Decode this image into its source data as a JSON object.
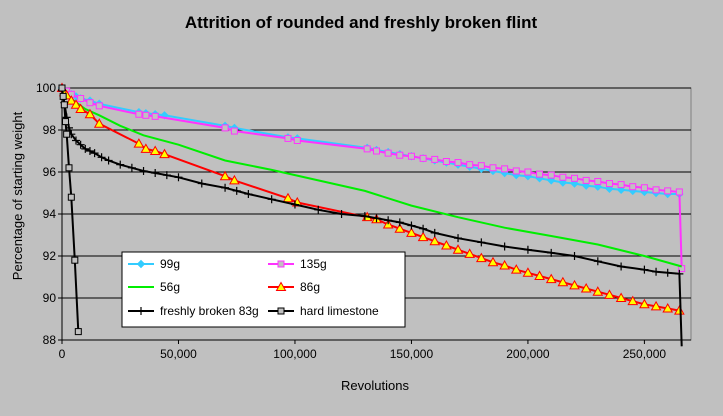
{
  "chart_data": {
    "type": "line",
    "title": "Attrition of rounded and freshly broken flint",
    "xlabel": "Revolutions",
    "ylabel": "Percentage of starting  weight",
    "xlim": [
      0,
      270000
    ],
    "ylim": [
      88,
      100
    ],
    "x_ticks": [
      0,
      50000,
      100000,
      150000,
      200000,
      250000
    ],
    "x_tick_labels": [
      "0",
      "50,000",
      "100,000",
      "150,000",
      "200,000",
      "250,000"
    ],
    "y_ticks": [
      88,
      90,
      92,
      94,
      96,
      98,
      100
    ],
    "y_tick_labels": [
      "88",
      "90",
      "92",
      "94",
      "96",
      "98",
      "100"
    ],
    "grid": "horizontal",
    "legend_position": "bottom-center",
    "series": [
      {
        "name": "99g",
        "color": "#33ccff",
        "marker": "diamond",
        "marker_fill": "#33ccff",
        "x": [
          0,
          1000,
          2000,
          4000,
          6000,
          8000,
          12000,
          16000,
          33000,
          36000,
          40000,
          44000,
          70000,
          74000,
          97000,
          101000,
          131000,
          135000,
          140000,
          145000,
          150000,
          155000,
          160000,
          165000,
          170000,
          175000,
          180000,
          185000,
          190000,
          195000,
          200000,
          205000,
          210000,
          215000,
          220000,
          225000,
          230000,
          235000,
          240000,
          245000,
          250000,
          255000,
          260000,
          265000
        ],
        "y": [
          100,
          99.9,
          99.8,
          99.7,
          99.6,
          99.5,
          99.4,
          99.25,
          98.85,
          98.8,
          98.75,
          98.7,
          98.2,
          98.1,
          97.65,
          97.6,
          97.15,
          97.05,
          96.95,
          96.85,
          96.75,
          96.65,
          96.55,
          96.45,
          96.35,
          96.25,
          96.15,
          96.05,
          95.95,
          95.85,
          95.8,
          95.7,
          95.6,
          95.5,
          95.45,
          95.35,
          95.3,
          95.2,
          95.15,
          95.1,
          95.05,
          95.0,
          94.95,
          94.95
        ]
      },
      {
        "name": "135g",
        "color": "#ff33ff",
        "marker": "square",
        "marker_fill": "#c0c0c0",
        "x": [
          0,
          2000,
          4000,
          8000,
          12000,
          16000,
          33000,
          36000,
          40000,
          70000,
          74000,
          97000,
          101000,
          131000,
          135000,
          140000,
          145000,
          150000,
          155000,
          160000,
          165000,
          170000,
          175000,
          180000,
          185000,
          190000,
          195000,
          200000,
          205000,
          210000,
          215000,
          220000,
          225000,
          230000,
          235000,
          240000,
          245000,
          250000,
          255000,
          260000,
          265000,
          266000
        ],
        "y": [
          100,
          99.85,
          99.7,
          99.5,
          99.3,
          99.15,
          98.75,
          98.7,
          98.65,
          98.1,
          97.95,
          97.6,
          97.5,
          97.1,
          97.0,
          96.9,
          96.8,
          96.75,
          96.65,
          96.6,
          96.5,
          96.45,
          96.35,
          96.3,
          96.2,
          96.15,
          96.05,
          96.0,
          95.9,
          95.85,
          95.75,
          95.7,
          95.6,
          95.55,
          95.45,
          95.4,
          95.3,
          95.25,
          95.15,
          95.1,
          95.05,
          91.4
        ]
      },
      {
        "name": "56g",
        "color": "#00ee00",
        "marker": "none",
        "marker_fill": "#00ee00",
        "x": [
          0,
          2000,
          5000,
          10000,
          16000,
          25000,
          35000,
          50000,
          70000,
          90000,
          110000,
          130000,
          150000,
          170000,
          190000,
          210000,
          230000,
          250000,
          266000
        ],
        "y": [
          100,
          99.7,
          99.4,
          99.0,
          98.7,
          98.2,
          97.75,
          97.3,
          96.55,
          96.1,
          95.6,
          95.1,
          94.4,
          93.85,
          93.35,
          92.95,
          92.55,
          92.0,
          91.5
        ]
      },
      {
        "name": "86g",
        "color": "#ff0000",
        "marker": "triangle",
        "marker_fill": "#ffff00",
        "x": [
          0,
          1000,
          2000,
          4000,
          6000,
          8000,
          12000,
          16000,
          33000,
          36000,
          40000,
          44000,
          70000,
          74000,
          97000,
          101000,
          131000,
          135000,
          140000,
          145000,
          150000,
          155000,
          160000,
          165000,
          170000,
          175000,
          180000,
          185000,
          190000,
          195000,
          200000,
          205000,
          210000,
          215000,
          220000,
          225000,
          230000,
          235000,
          240000,
          245000,
          250000,
          255000,
          260000,
          265000
        ],
        "y": [
          100,
          99.8,
          99.65,
          99.4,
          99.2,
          99.0,
          98.75,
          98.3,
          97.35,
          97.1,
          97.0,
          96.85,
          95.8,
          95.6,
          94.75,
          94.55,
          93.85,
          93.75,
          93.5,
          93.3,
          93.1,
          92.9,
          92.7,
          92.5,
          92.3,
          92.1,
          91.9,
          91.7,
          91.55,
          91.35,
          91.2,
          91.05,
          90.9,
          90.75,
          90.6,
          90.45,
          90.3,
          90.15,
          90.0,
          89.85,
          89.7,
          89.6,
          89.5,
          89.4
        ]
      },
      {
        "name": "freshly broken 83g",
        "color": "#000000",
        "marker": "plus",
        "marker_fill": "#000000",
        "x": [
          0,
          1000,
          2000,
          3000,
          4000,
          6000,
          8000,
          10000,
          12000,
          14000,
          17000,
          20000,
          25000,
          30000,
          35000,
          40000,
          45000,
          50000,
          60000,
          70000,
          75000,
          80000,
          90000,
          100000,
          110000,
          120000,
          130000,
          135000,
          140000,
          145000,
          150000,
          155000,
          160000,
          170000,
          180000,
          190000,
          200000,
          210000,
          220000,
          230000,
          240000,
          250000,
          255000,
          260000,
          265000,
          266000
        ],
        "y": [
          99.9,
          99.3,
          98.6,
          98.1,
          97.8,
          97.5,
          97.3,
          97.1,
          97.0,
          96.9,
          96.7,
          96.55,
          96.35,
          96.2,
          96.05,
          95.95,
          95.85,
          95.75,
          95.45,
          95.25,
          95.1,
          94.95,
          94.7,
          94.45,
          94.2,
          94.0,
          93.9,
          93.8,
          93.7,
          93.6,
          93.45,
          93.3,
          93.1,
          92.85,
          92.65,
          92.45,
          92.3,
          92.15,
          92.0,
          91.75,
          91.5,
          91.35,
          91.25,
          91.2,
          91.15,
          87.7
        ]
      },
      {
        "name": "hard limestone",
        "color": "#000000",
        "marker": "square",
        "marker_fill": "#c0c0c0",
        "x": [
          0,
          500,
          1000,
          1500,
          2000,
          3000,
          4000,
          5500,
          7000
        ],
        "y": [
          100,
          99.6,
          99.2,
          98.4,
          97.8,
          96.2,
          94.8,
          91.8,
          88.4
        ]
      }
    ]
  }
}
